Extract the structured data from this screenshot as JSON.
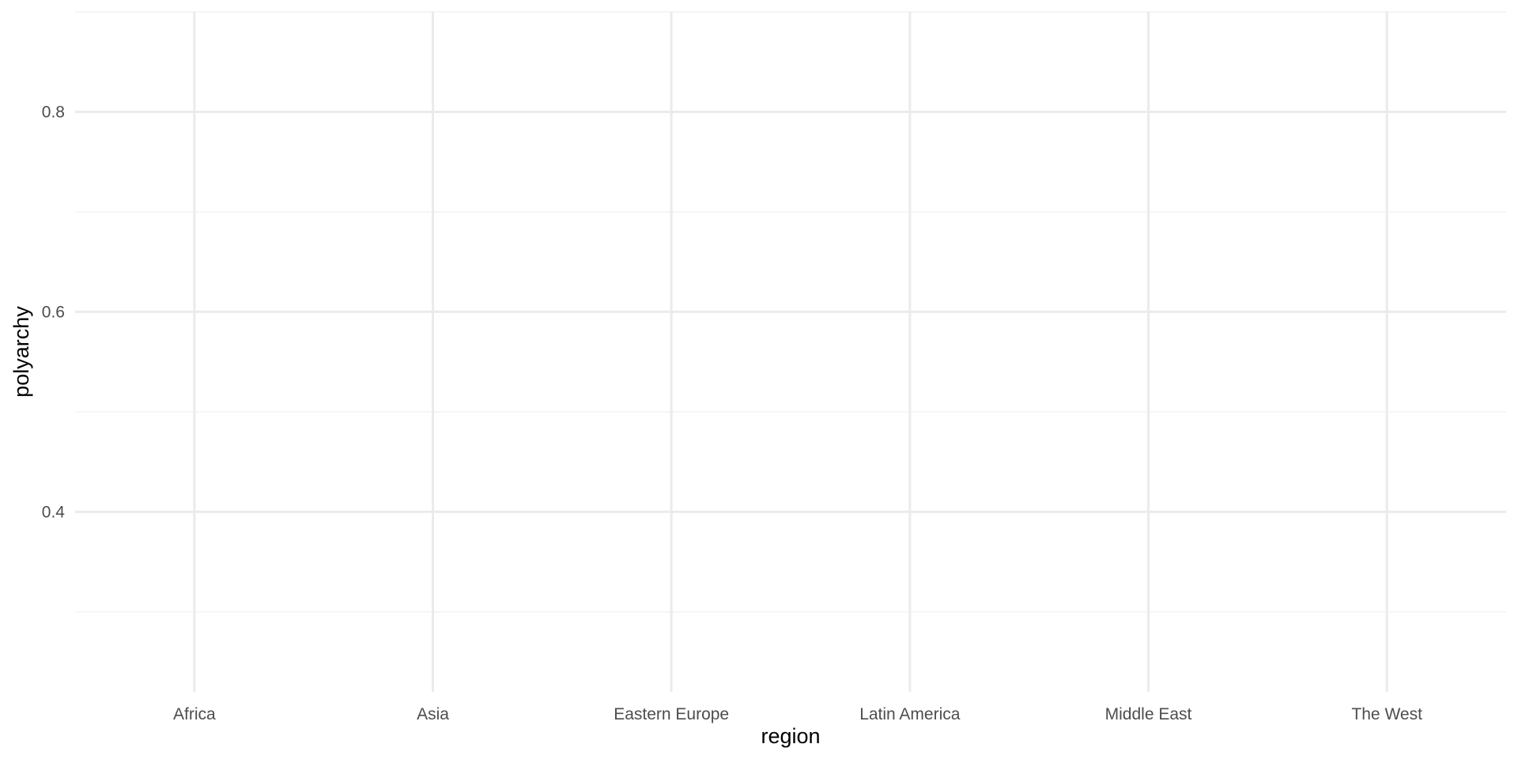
{
  "chart_data": {
    "type": "scatter",
    "title": "",
    "xlabel": "region",
    "ylabel": "polyarchy",
    "categories": [
      "Africa",
      "Asia",
      "Eastern Europe",
      "Latin America",
      "Middle East",
      "The West"
    ],
    "series": [],
    "ylim": [
      0.22,
      0.9
    ],
    "y_ticks": [
      0.4,
      0.6,
      0.8
    ],
    "y_tick_labels": [
      "0.4",
      "0.6",
      "0.8"
    ],
    "y_minor_ticks": [
      0.3,
      0.5,
      0.7,
      0.9
    ],
    "grid": true,
    "legend": "none",
    "colors": {
      "background": "#ffffff",
      "grid_major": "#ebebeb",
      "grid_minor": "#f2f2f2",
      "tick_text": "#4d4d4d",
      "axis_title": "#000000"
    }
  }
}
